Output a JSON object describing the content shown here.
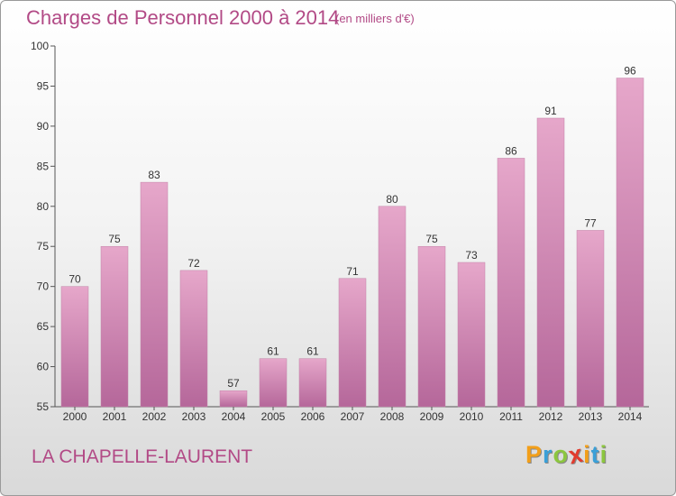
{
  "header": {
    "title": "Charges de Personnel 2000 à 2014",
    "subtitle": "(en milliers d'€)"
  },
  "footer": {
    "location": "LA CHAPELLE-LAURENT",
    "brand_letters": [
      {
        "ch": "P",
        "color": "#f29f1a"
      },
      {
        "ch": "r",
        "color": "#3aa0d8"
      },
      {
        "ch": "o",
        "color": "#8cc63f"
      },
      {
        "ch": "x",
        "color": "#e23b2e"
      },
      {
        "ch": "i",
        "color": "#f29f1a"
      },
      {
        "ch": "t",
        "color": "#3aa0d8"
      },
      {
        "ch": "i",
        "color": "#8cc63f"
      }
    ]
  },
  "chart_data": {
    "type": "bar",
    "title": "Charges de Personnel 2000 à 2014",
    "subtitle": "(en milliers d'€)",
    "categories": [
      "2000",
      "2001",
      "2002",
      "2003",
      "2004",
      "2005",
      "2006",
      "2007",
      "2008",
      "2009",
      "2010",
      "2011",
      "2012",
      "2013",
      "2014"
    ],
    "values": [
      70,
      75,
      83,
      72,
      57,
      61,
      61,
      71,
      80,
      75,
      73,
      86,
      91,
      77,
      96
    ],
    "ylim": [
      55,
      100
    ],
    "yticks": [
      55,
      60,
      65,
      70,
      75,
      80,
      85,
      90,
      95,
      100
    ],
    "grid": false,
    "bar_color": "#d98db7",
    "accent_color": "#b24a86"
  }
}
